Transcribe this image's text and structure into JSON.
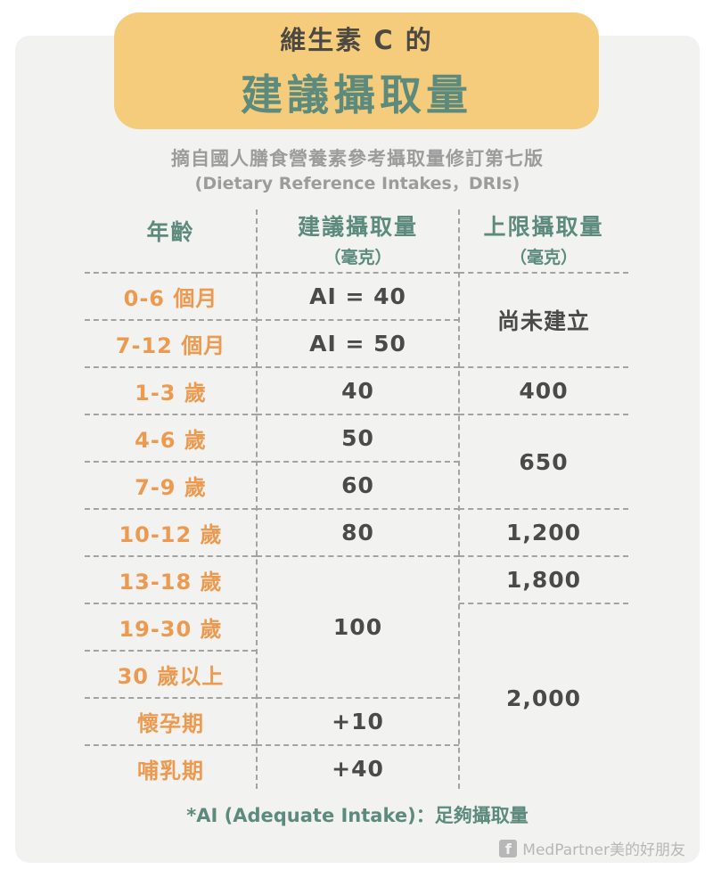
{
  "header": {
    "title_line1": "維生素 C 的",
    "title_line2": "建議攝取量",
    "subtitle_line1": "摘自國人膳食營養素參考攝取量修訂第七版",
    "subtitle_line2": "(Dietary Reference Intakes，DRIs)"
  },
  "table": {
    "header": {
      "age": "年齡",
      "recommended": "建議攝取量",
      "recommended_unit": "（毫克）",
      "upper": "上限攝取量",
      "upper_unit": "（毫克）"
    },
    "ages": [
      "0-6 個月",
      "7-12 個月",
      "1-3 歲",
      "4-6 歲",
      "7-9 歲",
      "10-12 歲",
      "13-18 歲",
      "19-30 歲",
      "30 歲以上",
      "懷孕期",
      "哺乳期"
    ],
    "recommended": [
      {
        "value": "AI = 40",
        "rows": 1
      },
      {
        "value": "AI = 50",
        "rows": 1
      },
      {
        "value": "40",
        "rows": 1
      },
      {
        "value": "50",
        "rows": 1
      },
      {
        "value": "60",
        "rows": 1
      },
      {
        "value": "80",
        "rows": 1
      },
      {
        "value": "100",
        "rows": 3
      },
      {
        "value": "+10",
        "rows": 1
      },
      {
        "value": "+40",
        "rows": 1
      }
    ],
    "upper_limit": [
      {
        "value": "尚未建立",
        "rows": 2
      },
      {
        "value": "400",
        "rows": 1
      },
      {
        "value": "650",
        "rows": 2
      },
      {
        "value": "1,200",
        "rows": 1
      },
      {
        "value": "1,800",
        "rows": 1
      },
      {
        "value": "2,000",
        "rows": 4
      }
    ]
  },
  "footnote": "*AI (Adequate Intake)：足夠攝取量",
  "brand": {
    "icon": "facebook-icon",
    "name": "MedPartner美的好朋友"
  },
  "colors": {
    "title_box_bg": "#F5CC7B",
    "title_dark": "#4C4943",
    "teal": "#5C8B7D",
    "orange": "#EC9A4F",
    "value_dark": "#4A4A4A",
    "subtitle_gray": "#9C9C9C",
    "card_bg": "#F2F2F0",
    "dash_line": "#A3A3A3",
    "brand_gray": "#B7B7B7"
  },
  "chart_data": {
    "type": "table",
    "title": "維生素 C 的建議攝取量",
    "subtitle": "摘自國人膳食營養素參考攝取量修訂第七版 (Dietary Reference Intakes，DRIs)",
    "columns": [
      "年齡",
      "建議攝取量（毫克）",
      "上限攝取量（毫克）"
    ],
    "rows": [
      [
        "0-6 個月",
        "AI = 40",
        "尚未建立"
      ],
      [
        "7-12 個月",
        "AI = 50",
        "尚未建立"
      ],
      [
        "1-3 歲",
        "40",
        "400"
      ],
      [
        "4-6 歲",
        "50",
        "650"
      ],
      [
        "7-9 歲",
        "60",
        "650"
      ],
      [
        "10-12 歲",
        "80",
        "1,200"
      ],
      [
        "13-18 歲",
        "100",
        "1,800"
      ],
      [
        "19-30 歲",
        "100",
        "2,000"
      ],
      [
        "30 歲以上",
        "100",
        "2,000"
      ],
      [
        "懷孕期",
        "+10",
        "2,000"
      ],
      [
        "哺乳期",
        "+40",
        "2,000"
      ]
    ],
    "note": "*AI (Adequate Intake)：足夠攝取量"
  }
}
